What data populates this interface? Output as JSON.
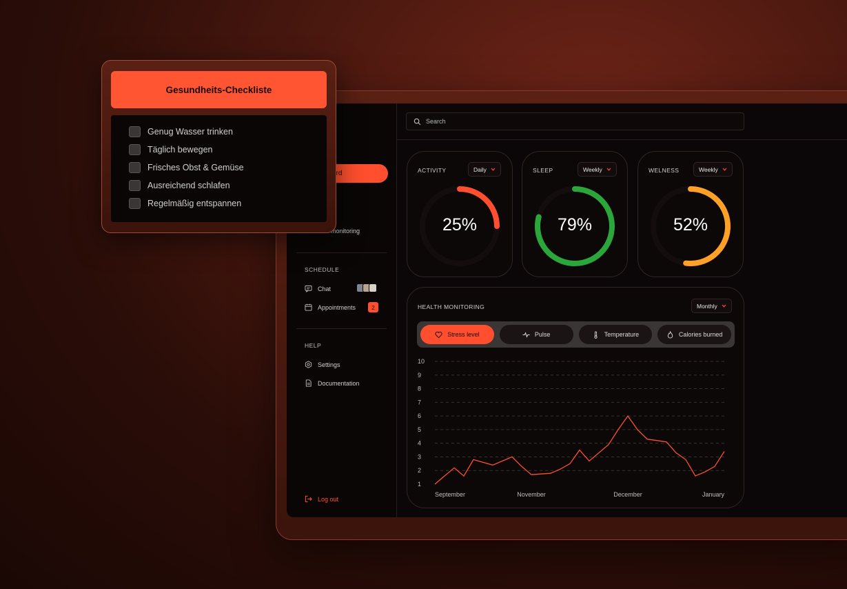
{
  "sidebar": {
    "active_item": "Dashboard",
    "active_item_visible": "ard",
    "health_monitoring_visible": "th monitoring",
    "schedule_heading": "SCHEDULE",
    "chat": "Chat",
    "appointments": "Appointments",
    "appointments_badge": "2",
    "help_heading": "HELP",
    "settings": "Settings",
    "documentation": "Documentation",
    "logout": "Log out"
  },
  "search": {
    "placeholder": "Search"
  },
  "cards": [
    {
      "title": "ACTIVITY",
      "period": "Daily",
      "value": "25%",
      "fraction": 0.25,
      "color": "#ff4f2e"
    },
    {
      "title": "SLEEP",
      "period": "Weekly",
      "value": "79%",
      "fraction": 0.79,
      "color": "#2aa63a"
    },
    {
      "title": "WELNESS",
      "period": "Weekly",
      "value": "52%",
      "fraction": 0.52,
      "color": "#ffa126"
    }
  ],
  "health": {
    "title": "HEALTH MONITORING",
    "period": "Monthly",
    "tabs": [
      "Stress level",
      "Pulse",
      "Temperature",
      "Calories burned"
    ],
    "active_tab": "Stress level"
  },
  "chart_data": {
    "type": "line",
    "title": "",
    "xlabel": "",
    "ylabel": "",
    "ylim": [
      1,
      10
    ],
    "yticks": [
      "1",
      "2",
      "3",
      "4",
      "5",
      "6",
      "7",
      "8",
      "9",
      "10"
    ],
    "xticks": [
      "September",
      "November",
      "December",
      "January"
    ],
    "grid": true,
    "series": [
      {
        "values": [
          1.0,
          1.6,
          2.2,
          1.6,
          2.8,
          2.6,
          2.4,
          2.7,
          3.0,
          2.3,
          1.7,
          1.75,
          1.8,
          2.1,
          2.5,
          3.5,
          2.7,
          3.3,
          3.9,
          5.0,
          6.0,
          5.0,
          4.3,
          4.2,
          4.1,
          3.3,
          2.8,
          1.6,
          1.9,
          2.3,
          3.4
        ]
      }
    ],
    "color": "#ff4f2e"
  },
  "checklist": {
    "title": "Gesundheits-Checkliste",
    "items": [
      "Genug Wasser trinken",
      "Täglich bewegen",
      "Frisches Obst & Gemüse",
      "Ausreichend schlafen",
      "Regelmäßig entspannen"
    ]
  }
}
